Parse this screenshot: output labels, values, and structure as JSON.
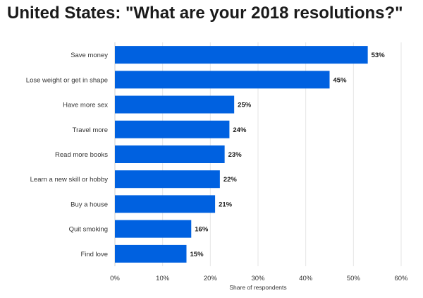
{
  "chart_data": {
    "type": "bar",
    "orientation": "horizontal",
    "title": "United States: \"What are your 2018 resolutions?\"",
    "xlabel": "Share of respondents",
    "ylabel": "",
    "categories": [
      "Save money",
      "Lose weight or get in shape",
      "Have more sex",
      "Travel more",
      "Read more books",
      "Learn a new skill or hobby",
      "Buy a house",
      "Quit smoking",
      "Find love"
    ],
    "values": [
      53,
      45,
      25,
      24,
      23,
      22,
      21,
      16,
      15
    ],
    "value_labels": [
      "53%",
      "45%",
      "25%",
      "24%",
      "23%",
      "22%",
      "21%",
      "16%",
      "15%"
    ],
    "xlim": [
      0,
      60
    ],
    "xticks": [
      0,
      10,
      20,
      30,
      40,
      50,
      60
    ],
    "xtick_labels": [
      "0%",
      "10%",
      "20%",
      "30%",
      "40%",
      "50%",
      "60%"
    ],
    "grid": true,
    "bar_color": "#0061e0"
  }
}
